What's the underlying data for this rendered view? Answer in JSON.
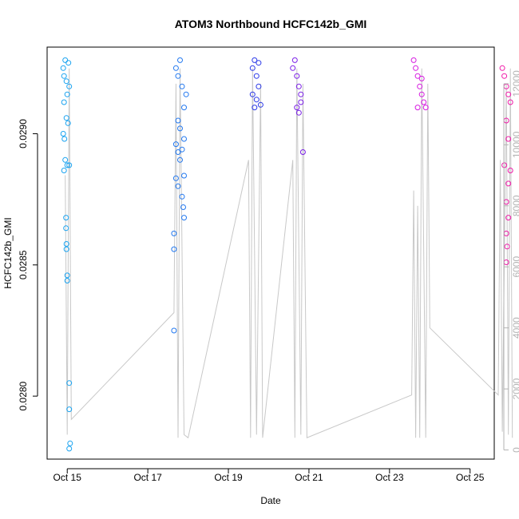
{
  "chart_data": {
    "type": "scatter",
    "title": "ATOM3 Northbound HCFC142b_GMI",
    "xlabel": "Date",
    "ylabel": "HCFC142b_GMI",
    "x_ticks": [
      {
        "x": 14.8,
        "label": "Oct 15"
      },
      {
        "x": 16.8,
        "label": "Oct 17"
      },
      {
        "x": 18.8,
        "label": "Oct 19"
      },
      {
        "x": 20.8,
        "label": "Oct 21"
      },
      {
        "x": 22.8,
        "label": "Oct 23"
      },
      {
        "x": 24.8,
        "label": "Oct 25"
      }
    ],
    "xlim": [
      14.3,
      25.4
    ],
    "ylim": [
      0.02776,
      0.02933
    ],
    "y_ticks": [
      0.028,
      0.0285,
      0.029
    ],
    "y_tick_labels": [
      "0.0280",
      "0.0285",
      "0.0290"
    ],
    "y2_ticks": [
      0,
      2000,
      4000,
      6000,
      8000,
      10000,
      12000
    ],
    "y2lim": [
      -300,
      13200
    ],
    "series": [
      {
        "color": "#1aa3f0",
        "points": [
          [
            14.7,
            0.02925
          ],
          [
            14.72,
            0.02922
          ],
          [
            14.75,
            0.02928
          ],
          [
            14.78,
            0.0292
          ],
          [
            14.8,
            0.02915
          ],
          [
            14.83,
            0.02927
          ],
          [
            14.85,
            0.02918
          ],
          [
            14.72,
            0.02912
          ],
          [
            14.78,
            0.02906
          ],
          [
            14.7,
            0.029
          ],
          [
            14.73,
            0.02898
          ],
          [
            14.75,
            0.0289
          ],
          [
            14.8,
            0.02888
          ],
          [
            14.72,
            0.02886
          ],
          [
            14.85,
            0.02888
          ],
          [
            14.82,
            0.02904
          ],
          [
            14.77,
            0.02868
          ],
          [
            14.77,
            0.02864
          ],
          [
            14.78,
            0.02858
          ],
          [
            14.78,
            0.02856
          ],
          [
            14.8,
            0.02846
          ],
          [
            14.8,
            0.02844
          ],
          [
            14.85,
            0.02805
          ],
          [
            14.85,
            0.02795
          ],
          [
            14.87,
            0.02782
          ],
          [
            14.85,
            0.0278
          ]
        ]
      },
      {
        "color": "#2278f0",
        "points": [
          [
            17.5,
            0.02925
          ],
          [
            17.55,
            0.02922
          ],
          [
            17.6,
            0.02928
          ],
          [
            17.65,
            0.02918
          ],
          [
            17.7,
            0.0291
          ],
          [
            17.75,
            0.02915
          ],
          [
            17.55,
            0.02905
          ],
          [
            17.6,
            0.02902
          ],
          [
            17.7,
            0.02898
          ],
          [
            17.5,
            0.02896
          ],
          [
            17.65,
            0.02894
          ],
          [
            17.6,
            0.0289
          ],
          [
            17.55,
            0.02893
          ],
          [
            17.7,
            0.02884
          ],
          [
            17.5,
            0.02883
          ],
          [
            17.55,
            0.0288
          ],
          [
            17.65,
            0.02876
          ],
          [
            17.68,
            0.02872
          ],
          [
            17.7,
            0.02868
          ],
          [
            17.45,
            0.02862
          ],
          [
            17.45,
            0.02856
          ],
          [
            17.45,
            0.02825
          ]
        ]
      },
      {
        "color": "#2a38e8",
        "points": [
          [
            19.4,
            0.02925
          ],
          [
            19.45,
            0.02928
          ],
          [
            19.5,
            0.02922
          ],
          [
            19.55,
            0.02918
          ],
          [
            19.4,
            0.02915
          ],
          [
            19.45,
            0.0291
          ],
          [
            19.5,
            0.02913
          ],
          [
            19.55,
            0.02927
          ],
          [
            19.6,
            0.02911
          ]
        ]
      },
      {
        "color": "#7a1ee8",
        "points": [
          [
            20.4,
            0.02925
          ],
          [
            20.45,
            0.02928
          ],
          [
            20.5,
            0.02922
          ],
          [
            20.55,
            0.02918
          ],
          [
            20.6,
            0.02915
          ],
          [
            20.5,
            0.0291
          ],
          [
            20.55,
            0.02908
          ],
          [
            20.6,
            0.02912
          ],
          [
            20.65,
            0.02893
          ]
        ]
      },
      {
        "color": "#d61ae0",
        "points": [
          [
            23.4,
            0.02928
          ],
          [
            23.45,
            0.02925
          ],
          [
            23.5,
            0.02922
          ],
          [
            23.55,
            0.02918
          ],
          [
            23.6,
            0.02915
          ],
          [
            23.65,
            0.02912
          ],
          [
            23.7,
            0.0291
          ],
          [
            23.5,
            0.0291
          ],
          [
            23.6,
            0.02921
          ]
        ]
      },
      {
        "color": "#f01aa8",
        "points": [
          [
            25.6,
            0.02925
          ],
          [
            25.65,
            0.02922
          ],
          [
            25.7,
            0.02918
          ],
          [
            25.75,
            0.02915
          ],
          [
            25.8,
            0.02912
          ],
          [
            25.7,
            0.02905
          ],
          [
            25.75,
            0.02898
          ],
          [
            25.65,
            0.02888
          ],
          [
            25.8,
            0.02886
          ],
          [
            25.75,
            0.02881
          ],
          [
            25.7,
            0.02874
          ],
          [
            25.75,
            0.02868
          ],
          [
            25.7,
            0.02862
          ],
          [
            25.72,
            0.02857
          ],
          [
            25.7,
            0.02851
          ]
        ]
      }
    ],
    "altitude_trace": {
      "color": "#c8c8c8",
      "points": [
        [
          14.75,
          9000
        ],
        [
          14.8,
          500
        ],
        [
          14.85,
          12500
        ],
        [
          14.9,
          1000
        ],
        [
          17.45,
          4500
        ],
        [
          17.5,
          12000
        ],
        [
          17.55,
          400
        ],
        [
          17.6,
          12500
        ],
        [
          17.7,
          500
        ],
        [
          17.8,
          400
        ],
        [
          19.3,
          9500
        ],
        [
          19.35,
          400
        ],
        [
          19.4,
          12500
        ],
        [
          19.5,
          500
        ],
        [
          19.6,
          12000
        ],
        [
          19.65,
          400
        ],
        [
          20.4,
          9500
        ],
        [
          20.45,
          400
        ],
        [
          20.5,
          12500
        ],
        [
          20.6,
          500
        ],
        [
          20.65,
          12000
        ],
        [
          20.75,
          400
        ],
        [
          23.35,
          1800
        ],
        [
          23.4,
          8500
        ],
        [
          23.45,
          400
        ],
        [
          23.5,
          8000
        ],
        [
          23.55,
          400
        ],
        [
          23.6,
          12500
        ],
        [
          23.7,
          400
        ],
        [
          23.75,
          12000
        ],
        [
          23.8,
          4000
        ],
        [
          25.5,
          1800
        ],
        [
          25.55,
          9500
        ],
        [
          25.6,
          600
        ],
        [
          25.7,
          12000
        ],
        [
          25.75,
          500
        ],
        [
          25.8,
          12500
        ],
        [
          25.85,
          400
        ]
      ]
    }
  }
}
